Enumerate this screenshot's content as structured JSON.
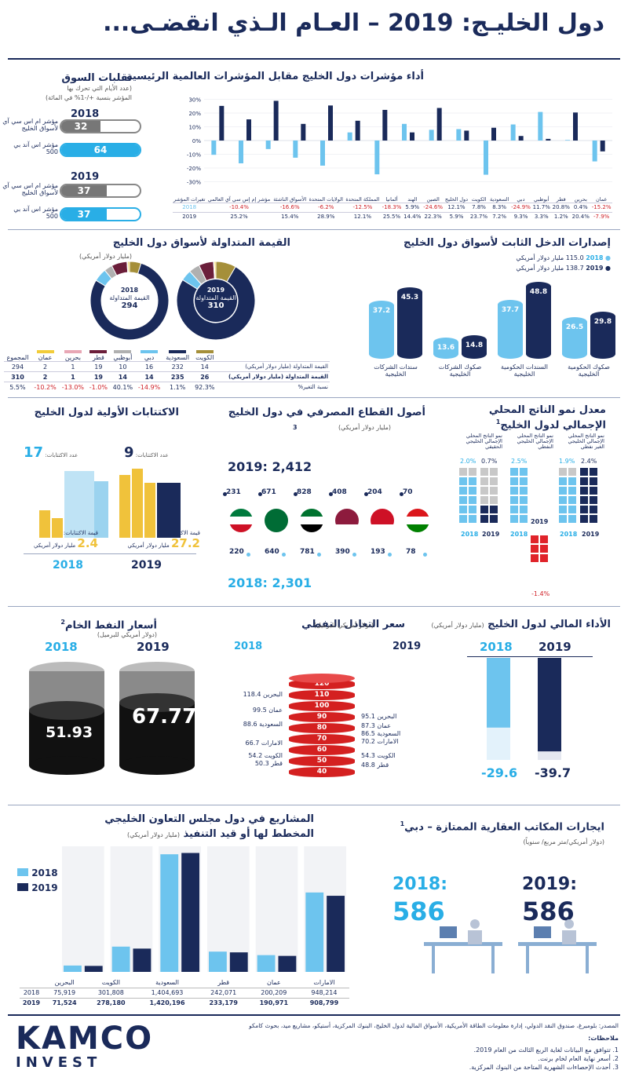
{
  "header": {
    "title": "دول الخليـج: 2019 – العـام الـذي انقضـى..."
  },
  "perf": {
    "title": "أداء مؤشرات دول الخليج مقابل المؤشرات العالمية الرئيسية",
    "yticks": [
      "30%",
      "20%",
      "10%",
      "0%",
      "-10%",
      "-20%",
      "-30%"
    ],
    "header_label": "تغيرات المؤشر",
    "row2018": "2018",
    "row2019": "2019",
    "columns": [
      "مؤشر إم إس سي آي العالمي",
      "الأسواق الناشئة",
      "الولايات المتحدة",
      "المملكة المتحدة",
      "ألمانيا",
      "الهند",
      "الصين",
      "دول الخليج",
      "الكويت",
      "السعودية",
      "دبي",
      "أبوظبي",
      "قطر",
      "بحرين",
      "عمان"
    ],
    "v2018": [
      "-10.4%",
      "-16.6%",
      "-6.2%",
      "-12.5%",
      "-18.3%",
      "5.9%",
      "-24.6%",
      "12.1%",
      "7.8%",
      "8.3%",
      "-24.9%",
      "11.7%",
      "20.8%",
      "0.4%",
      "-15.2%"
    ],
    "v2019": [
      "25.2%",
      "15.4%",
      "28.9%",
      "12.1%",
      "25.5%",
      "14.4%",
      "22.3%",
      "5.9%",
      "23.7%",
      "7.2%",
      "9.3%",
      "3.3%",
      "1.2%",
      "20.4%",
      "-7.9%"
    ]
  },
  "chart_data": [
    {
      "type": "bar",
      "title": "أداء مؤشرات دول الخليج مقابل المؤشرات العالمية الرئيسية",
      "categories": [
        "مؤشر إم إس سي آي العالمي",
        "الأسواق الناشئة",
        "الولايات المتحدة",
        "المملكة المتحدة",
        "ألمانيا",
        "الهند",
        "الصين",
        "دول الخليج",
        "الكويت",
        "السعودية",
        "دبي",
        "أبوظبي",
        "قطر",
        "بحرين",
        "عمان"
      ],
      "series": [
        {
          "name": "2018",
          "values": [
            -10.4,
            -16.6,
            -6.2,
            -12.5,
            -18.3,
            5.9,
            -24.6,
            12.1,
            7.8,
            8.3,
            -24.9,
            11.7,
            20.8,
            0.4,
            -15.2
          ]
        },
        {
          "name": "2019",
          "values": [
            25.2,
            15.4,
            28.9,
            12.1,
            25.5,
            14.4,
            22.3,
            5.9,
            23.7,
            7.2,
            9.3,
            3.3,
            1.2,
            20.4,
            -7.9
          ]
        }
      ],
      "ylim": [
        -30,
        30
      ]
    },
    {
      "type": "bar",
      "title": "إصدارات الدخل الثابت لأسواق دول الخليج",
      "categories": [
        "سندات الشركات الخليجية",
        "صكوك الشركات الخليجية",
        "السندات الحكومية الخليجية",
        "صكوك الحكومية الخليجية"
      ],
      "series": [
        {
          "name": "2018",
          "values": [
            37.2,
            13.6,
            37.7,
            26.5
          ]
        },
        {
          "name": "2019",
          "values": [
            45.3,
            14.8,
            48.8,
            29.8
          ]
        }
      ]
    },
    {
      "type": "bar",
      "title": "المشاريع في دول مجلس التعاون الخليجي المخطط لها أو قيد التنفيذ",
      "categories": [
        "البحرين",
        "الكويت",
        "السعودية",
        "قطر",
        "عمان",
        "الامارات"
      ],
      "series": [
        {
          "name": "2018",
          "values": [
            75919,
            301808,
            1404693,
            242071,
            200209,
            948214
          ]
        },
        {
          "name": "2019",
          "values": [
            71524,
            278180,
            1420196,
            233179,
            190971,
            908799
          ]
        }
      ],
      "ylim": [
        0,
        1500000
      ]
    },
    {
      "type": "pie",
      "title": "القيمة المتداولة لأسواق دول الخليج",
      "categories": [
        "الكويت",
        "السعودية",
        "دبي",
        "أبوظبي",
        "قطر",
        "بحرين",
        "عمان"
      ],
      "series": [
        {
          "name": "2018",
          "values": [
            14,
            232,
            16,
            10,
            19,
            1,
            2
          ]
        },
        {
          "name": "2019",
          "values": [
            26,
            235,
            14,
            14,
            19,
            1,
            2
          ]
        }
      ]
    },
    {
      "type": "bar",
      "title": "الأداء المالي لدول الخليج",
      "categories": [
        "2018",
        "2019"
      ],
      "values": [
        -29.6,
        -39.7
      ]
    }
  ],
  "volatility": {
    "title": "تقلبات السوق",
    "sub1": "(عدد الأيام التي تحرك بها",
    "sub2": "المؤشر بنسبة +/-1% في المائة)",
    "y2018": "2018",
    "y2019": "2019",
    "gcc_label": "مؤشر ام اس سي آي لأسواق الخليج",
    "sp_label": "مؤشر اس آند بي 500",
    "gcc2018": "32",
    "sp2018": "64",
    "gcc2019": "37",
    "sp2019": "37"
  },
  "fixed": {
    "title": "إصدارات الدخل الثابت لأسواق دول الخليج",
    "leg2018": "115.0 مليار دولار أمريكي",
    "leg2019": "138.7 مليار دولار أمريكي",
    "y2018": "2018",
    "y2019": "2019",
    "cats": [
      "صكوك الحكومية الخليجية",
      "السندات الحكومية الخليجية",
      "صكوك الشركات الخليجية",
      "سندات الشركات الخليجية"
    ],
    "v2018": [
      "26.5",
      "37.7",
      "13.6",
      "37.2"
    ],
    "v2019": [
      "29.8",
      "48.8",
      "14.8",
      "45.3"
    ]
  },
  "traded": {
    "title": "القيمة المتداولة لأسواق دول الخليج",
    "unit": "(مليار دولار أمريكي)",
    "d2018_year": "2018",
    "d2018_label": "القيمة المتداولة",
    "d2018_value": "294",
    "d2019_year": "2019",
    "d2019_label": "القيمة المتداولة",
    "d2019_value": "310",
    "legend": [
      "المجموع",
      "عمان",
      "بحرين",
      "قطر",
      "أبوظبي",
      "دبي",
      "السعودية",
      "الكويت"
    ],
    "row_labels": [
      "القيمة المتداولة (مليار دولار أمريكي)",
      "القيمة المتداولة (مليار دولار أمريكي)",
      "نسبة التغير%"
    ],
    "r2018": [
      "294",
      "2",
      "1",
      "19",
      "10",
      "16",
      "232",
      "14"
    ],
    "r2019": [
      "310",
      "2",
      "1",
      "19",
      "14",
      "14",
      "235",
      "26"
    ],
    "rchg": [
      "5.5%",
      "-10.2%",
      "-13.0%",
      "-1.0%",
      "40.1%",
      "-14.9%",
      "1.1%",
      "92.3%"
    ]
  },
  "ipo": {
    "title": "الاكتتابات الأولية لدول الخليج",
    "count_label": "عدد الاكتتابات:",
    "c2018": "17",
    "c2019": "9",
    "val_label": "قيمة الاكتتابات:",
    "v2018": "2.4",
    "v2019": "27.2",
    "unit": "مليار دولار أمريكي",
    "y2018": "2018",
    "y2019": "2019"
  },
  "bank": {
    "title": "أصول القطاع المصرفي في دول الخليج",
    "sup": "3",
    "unit": "(مليار دولار أمريكي)",
    "total2019": "2019: 2,412",
    "total2018": "2018: 2,301",
    "top": [
      "231",
      "671",
      "828",
      "408",
      "204",
      "70"
    ],
    "bottom": [
      "220",
      "640",
      "781",
      "390",
      "193",
      "78"
    ]
  },
  "gdp": {
    "title": "معدل نمو الناتج المحلي الإجمالي لدول الخليج",
    "sup": "1",
    "c1": "نمو الناتج المحلي الإجمالي الخليجي الحقيقي",
    "c2": "نمو الناتج المحلي الإجمالي الخليجي النفطي",
    "c3": "نمو الناتج المحلي الإجمالي الخليجي الغير نفطي",
    "c1a": "2.0%",
    "c1b": "0.7%",
    "c2a": "2.5%",
    "c2b": "-1.4%",
    "c3a": "1.9%",
    "c3b": "2.4%",
    "y2018": "2018",
    "y2019": "2019"
  },
  "crude": {
    "title": "أسعار النفط الخام",
    "sup": "2",
    "unit": "(دولار أمريكي للبرميل)",
    "y2018": "2018",
    "y2019": "2019",
    "v2018": "51.93",
    "v2019": "67.77"
  },
  "breakeven": {
    "title": "سعر التعادل النفطي",
    "unit": "(دولار أمريكي للبرميل)",
    "y2018": "2018",
    "y2019": "2019",
    "ticks": [
      "120",
      "110",
      "100",
      "90",
      "80",
      "70",
      "60",
      "50",
      "40"
    ],
    "left": [
      "البحرين 118.4",
      "عمان 99.5",
      "السعودية 88.6",
      "الامارات 66.7",
      "الكويت 54.2",
      "قطر 50.3"
    ],
    "right": [
      "البحرين 95.1",
      "عمان 87.3",
      "السعودية 86.5",
      "الامارات 70.2",
      "الكويت 54.3",
      "قطر 48.8"
    ]
  },
  "fiscal": {
    "title": "الأداء المالي لدول الخليج",
    "unit": "(مليار دولار أمريكي)",
    "y2018": "2018",
    "y2019": "2019",
    "v2018": "-29.6",
    "v2019": "-39.7"
  },
  "projects": {
    "title1": "المشاريع في دول مجلس التعاون الخليجي",
    "title2": "المخطط لها أو قيد التنفيذ",
    "unit": "(مليار دولار أمريكي)",
    "leg2018": "2018",
    "leg2019": "2019",
    "cats": [
      "البحرين",
      "الكويت",
      "السعودية",
      "قطر",
      "عمان",
      "الامارات"
    ],
    "v2018": [
      "75,919",
      "301,808",
      "1,404,693",
      "242,071",
      "200,209",
      "948,214"
    ],
    "v2019": [
      "71,524",
      "278,180",
      "1,420,196",
      "233,179",
      "190,971",
      "908,799"
    ]
  },
  "rent": {
    "title": "ايجارات المكاتب العقارية الممتازة – دبي",
    "sup": "1",
    "unit": "(دولار أمريكي/متر مربع/ سنوياً)",
    "y2018": "2018:",
    "v2018": "586",
    "y2019": "2019:",
    "v2019": "586"
  },
  "footer": {
    "logo1": "KAMCO",
    "logo2": "INVEST",
    "source": "المصدر: بلومبرغ، صندوق النقد الدولي، إدارة معلومات الطاقة الأمريكية، الأسواق المالية لدول الخليج، البنوك المركزية، أستيكو، مشاريع ميد، بحوث كامكو",
    "notes_title": "ملاحظات:",
    "notes": [
      "1.   تتوافق مع البيانات لغاية الربع الثالث من العام 2019.",
      "2.   أسعر نهاية العام لخام برنت.",
      "3.   أحدث الإحصاءات الشهرية المتاحة من البنوك المركزية."
    ]
  }
}
